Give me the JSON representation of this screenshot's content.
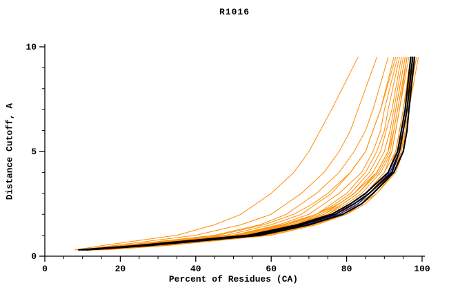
{
  "chart_data": {
    "type": "line",
    "title": "R1016",
    "xlabel": "Percent of Residues (CA)",
    "ylabel": "Distance Cutoff, A",
    "xlim": [
      0,
      100
    ],
    "ylim": [
      0,
      10
    ],
    "x_ticks": [
      0,
      20,
      40,
      60,
      80,
      100
    ],
    "y_ticks": [
      0,
      5,
      10
    ],
    "x_minor_step": 5,
    "y_minor_step": 1,
    "grid": false,
    "legend": false,
    "colors": {
      "orange": "#ff8c00",
      "black": "#000000",
      "blue": "#2a2ab0"
    },
    "cutoffs": [
      0.3,
      0.5,
      1.0,
      1.5,
      2.0,
      2.5,
      3.0,
      4.0,
      5.0,
      6.0,
      7.0,
      9.5
    ],
    "series": [
      {
        "name": "o1",
        "color": "orange",
        "percents": [
          8,
          15,
          35,
          45,
          52,
          56,
          60,
          66,
          70,
          73,
          76,
          83
        ]
      },
      {
        "name": "o2",
        "color": "orange",
        "percents": [
          9,
          18,
          40,
          52,
          60,
          64,
          68,
          74,
          78,
          81,
          83,
          88
        ]
      },
      {
        "name": "o3",
        "color": "orange",
        "percents": [
          10,
          20,
          45,
          57,
          64,
          68,
          72,
          78,
          82,
          85,
          87,
          91
        ]
      },
      {
        "name": "o4",
        "color": "orange",
        "percents": [
          8,
          22,
          48,
          60,
          68,
          72,
          76,
          81,
          85,
          87,
          89,
          93
        ]
      },
      {
        "name": "o5",
        "color": "orange",
        "percents": [
          12,
          25,
          52,
          64,
          72,
          76,
          80,
          85,
          88,
          90,
          91,
          94
        ]
      },
      {
        "name": "o6",
        "color": "orange",
        "percents": [
          10,
          24,
          50,
          62,
          70,
          74,
          78,
          84,
          87,
          89,
          90,
          93.5
        ]
      },
      {
        "name": "o7",
        "color": "orange",
        "percents": [
          14,
          28,
          55,
          67,
          75,
          79,
          83,
          88,
          91,
          92,
          93,
          95.5
        ]
      },
      {
        "name": "o8",
        "color": "orange",
        "percents": [
          11,
          26,
          53,
          66,
          74,
          78,
          82,
          87,
          90,
          91.5,
          92.5,
          95
        ]
      },
      {
        "name": "o9",
        "color": "orange",
        "percents": [
          13,
          27,
          56,
          68,
          77,
          81,
          85,
          90,
          92,
          93,
          94,
          96
        ]
      },
      {
        "name": "o10",
        "color": "orange",
        "percents": [
          9,
          23,
          51,
          63,
          72,
          77,
          81,
          86,
          89,
          90.5,
          92,
          94.5
        ]
      },
      {
        "name": "o11",
        "color": "orange",
        "percents": [
          15,
          30,
          58,
          70,
          78,
          82,
          86,
          91,
          93,
          94,
          95,
          97
        ]
      },
      {
        "name": "o12",
        "color": "orange",
        "percents": [
          12,
          26,
          54,
          66,
          75,
          80,
          84,
          89,
          92,
          93,
          94,
          96.5
        ]
      },
      {
        "name": "o13",
        "color": "orange",
        "percents": [
          10,
          25,
          53,
          65,
          74,
          79,
          83,
          88.5,
          91.5,
          92.5,
          93.5,
          96
        ]
      },
      {
        "name": "o14",
        "color": "orange",
        "percents": [
          16,
          32,
          60,
          72,
          80,
          84,
          87,
          92,
          94,
          95,
          96,
          98
        ]
      },
      {
        "name": "o15",
        "color": "orange",
        "percents": [
          13,
          28,
          57,
          69,
          78,
          82,
          86,
          91,
          93.5,
          94.5,
          95.5,
          97.5
        ]
      },
      {
        "name": "o16",
        "color": "orange",
        "percents": [
          11,
          24,
          52,
          64,
          73,
          78,
          82,
          88,
          91,
          92,
          93,
          95.5
        ]
      },
      {
        "name": "o17",
        "color": "orange",
        "percents": [
          14,
          29,
          58,
          70,
          79,
          83,
          87,
          92,
          94,
          95,
          96,
          98.5
        ]
      },
      {
        "name": "o18",
        "color": "orange",
        "percents": [
          12,
          27,
          56,
          68,
          77,
          82,
          86,
          91,
          93,
          94,
          95,
          97
        ]
      },
      {
        "name": "o19",
        "color": "orange",
        "percents": [
          10,
          22,
          50,
          63,
          72,
          78,
          82,
          88,
          91,
          92.5,
          93.5,
          96
        ]
      },
      {
        "name": "o20",
        "color": "orange",
        "percents": [
          15,
          31,
          59,
          71,
          80,
          85,
          88,
          93,
          95,
          95.5,
          96.5,
          99
        ]
      },
      {
        "name": "o21",
        "color": "orange",
        "percents": [
          13,
          29,
          57,
          70,
          79,
          83,
          87,
          92,
          94.5,
          95,
          96,
          98
        ]
      },
      {
        "name": "o22",
        "color": "orange",
        "percents": [
          9,
          20,
          46,
          58,
          66,
          71,
          75,
          81,
          85,
          87,
          89,
          92.5
        ]
      },
      {
        "name": "o23",
        "color": "orange",
        "percents": [
          11,
          25,
          54,
          67,
          76,
          81,
          85,
          90,
          93,
          94,
          95,
          97
        ]
      },
      {
        "name": "o24",
        "color": "orange",
        "percents": [
          14,
          30,
          58,
          71,
          80,
          84,
          88,
          92.5,
          94.5,
          95.5,
          96,
          98
        ]
      },
      {
        "name": "o25",
        "color": "orange",
        "percents": [
          12,
          28,
          56,
          69,
          78,
          83,
          87,
          92,
          94,
          94.5,
          95.5,
          97.5
        ]
      },
      {
        "name": "blue-1",
        "color": "blue",
        "percents": [
          10,
          26,
          56,
          69,
          78,
          83,
          86,
          91.5,
          94,
          95,
          96,
          97.5
        ]
      },
      {
        "name": "black-1",
        "color": "black",
        "percents": [
          10,
          25,
          55,
          68,
          77,
          82,
          86,
          92,
          94,
          95,
          96,
          97.5
        ]
      },
      {
        "name": "black-2",
        "color": "black",
        "percents": [
          11,
          27,
          57,
          70,
          79,
          84,
          87,
          92.5,
          95,
          96,
          96.5,
          98
        ]
      },
      {
        "name": "black-3",
        "color": "black",
        "percents": [
          9,
          24,
          54,
          67,
          76,
          81,
          85,
          91,
          93.5,
          94.5,
          95.5,
          97
        ]
      }
    ]
  }
}
